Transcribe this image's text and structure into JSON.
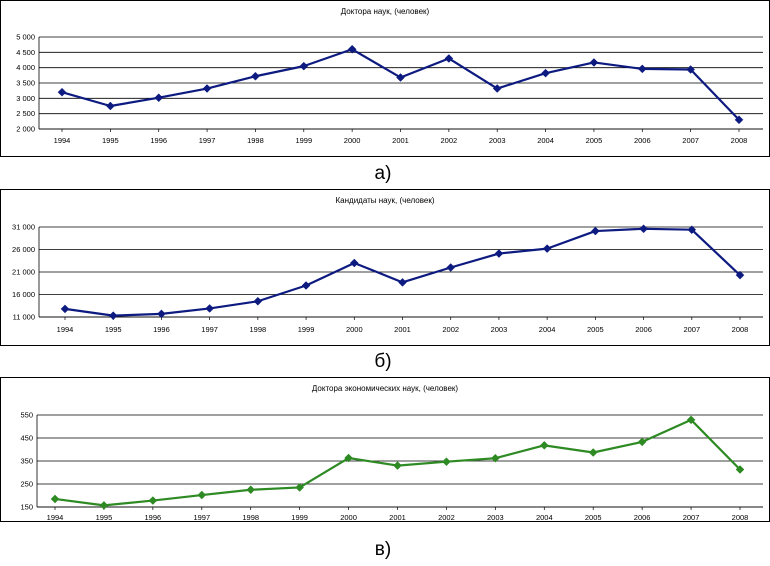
{
  "charts_meta": {
    "label_a": "а)",
    "label_b": "б)",
    "label_c": "в)"
  },
  "chart_data": [
    {
      "type": "line",
      "title": "Доктора наук, (человек)",
      "categories": [
        "1994",
        "1995",
        "1996",
        "1997",
        "1998",
        "1999",
        "2000",
        "2001",
        "2002",
        "2003",
        "2004",
        "2005",
        "2006",
        "2007",
        "2008"
      ],
      "series": [
        {
          "values": [
            3200,
            2750,
            3020,
            3320,
            3720,
            4050,
            4600,
            3680,
            4300,
            3320,
            3820,
            4170,
            3960,
            3940,
            2300
          ]
        }
      ],
      "yticks": [
        "5 000",
        "4 500",
        "4 000",
        "3 500",
        "3 000",
        "2 500",
        "2 000"
      ],
      "ylim": [
        2000,
        5000
      ],
      "grid": true,
      "color": "#0d1a80",
      "marker": "diamond"
    },
    {
      "type": "line",
      "title": "Кандидаты наук, (человек)",
      "categories": [
        "1994",
        "1995",
        "1996",
        "1997",
        "1998",
        "1999",
        "2000",
        "2001",
        "2002",
        "2003",
        "2004",
        "2005",
        "2006",
        "2007",
        "2008"
      ],
      "series": [
        {
          "values": [
            12800,
            11300,
            11700,
            12900,
            14500,
            18000,
            23000,
            18700,
            22000,
            25100,
            26200,
            30100,
            30600,
            30400,
            20300
          ]
        }
      ],
      "yticks": [
        "31 000",
        "26 000",
        "21 000",
        "16 000",
        "11 000"
      ],
      "ylim": [
        11000,
        31000
      ],
      "grid": true,
      "color": "#0d1a80",
      "marker": "diamond"
    },
    {
      "type": "line",
      "title": "Доктора экономических наук, (человек)",
      "categories": [
        "1994",
        "1995",
        "1996",
        "1997",
        "1998",
        "1999",
        "2000",
        "2001",
        "2002",
        "2003",
        "2004",
        "2005",
        "2006",
        "2007",
        "2008"
      ],
      "series": [
        {
          "values": [
            185,
            157,
            178,
            202,
            225,
            235,
            363,
            330,
            347,
            362,
            418,
            387,
            433,
            529,
            313
          ]
        }
      ],
      "yticks": [
        "550",
        "450",
        "350",
        "250",
        "150"
      ],
      "ylim": [
        150,
        550
      ],
      "grid": true,
      "color": "#2e8a23",
      "marker": "diamond"
    }
  ]
}
